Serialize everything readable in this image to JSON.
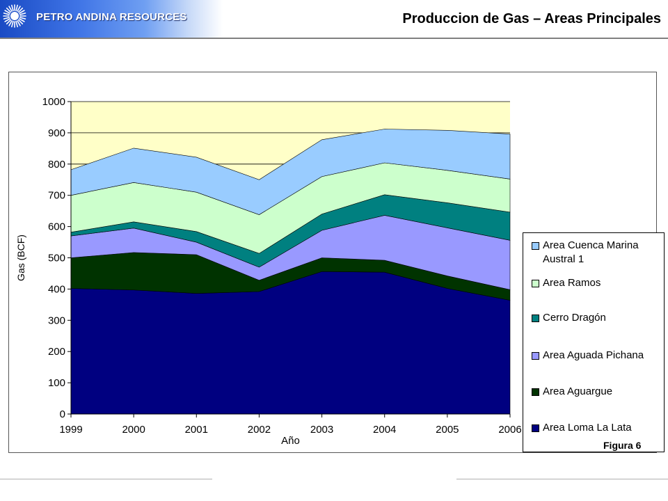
{
  "header": {
    "company": "PETRO ANDINA RESOURCES",
    "title": "Produccion de Gas – Areas Principales"
  },
  "figure_label": "Figura 6",
  "colors": {
    "plot_background": "#ffffc8",
    "header_gradient_start": "#1a4bc4"
  },
  "chart_data": {
    "type": "area",
    "stacked": true,
    "title": "",
    "xlabel": "Año",
    "ylabel": "Gas (BCF)",
    "categories": [
      "1999",
      "2000",
      "2001",
      "2002",
      "2003",
      "2004",
      "2005",
      "2006"
    ],
    "ylim": [
      0,
      1000
    ],
    "yticks": [
      "0",
      "100",
      "200",
      "300",
      "400",
      "500",
      "600",
      "700",
      "800",
      "900",
      "1000"
    ],
    "grid": "horizontal",
    "legend_position": "right",
    "series": [
      {
        "name": "Area Loma La Lata",
        "color": "#000080",
        "values": [
          402,
          397,
          386,
          392,
          456,
          454,
          402,
          364
        ]
      },
      {
        "name": "Area Aguargue",
        "color": "#003300",
        "values": [
          98,
          120,
          124,
          36,
          44,
          38,
          40,
          34
        ]
      },
      {
        "name": "Area Aguada Pichana",
        "color": "#9999ff",
        "values": [
          70,
          78,
          40,
          42,
          88,
          144,
          154,
          158
        ]
      },
      {
        "name": "Cerro Dragón",
        "color": "#008080",
        "values": [
          12,
          20,
          34,
          44,
          52,
          66,
          80,
          90
        ]
      },
      {
        "name": "Area Ramos",
        "color": "#ccffcc",
        "values": [
          118,
          126,
          126,
          124,
          120,
          102,
          104,
          106
        ]
      },
      {
        "name": "Area Cuenca Marina Austral 1",
        "color": "#99ccff",
        "values": [
          82,
          110,
          112,
          112,
          118,
          108,
          128,
          144
        ]
      }
    ]
  }
}
